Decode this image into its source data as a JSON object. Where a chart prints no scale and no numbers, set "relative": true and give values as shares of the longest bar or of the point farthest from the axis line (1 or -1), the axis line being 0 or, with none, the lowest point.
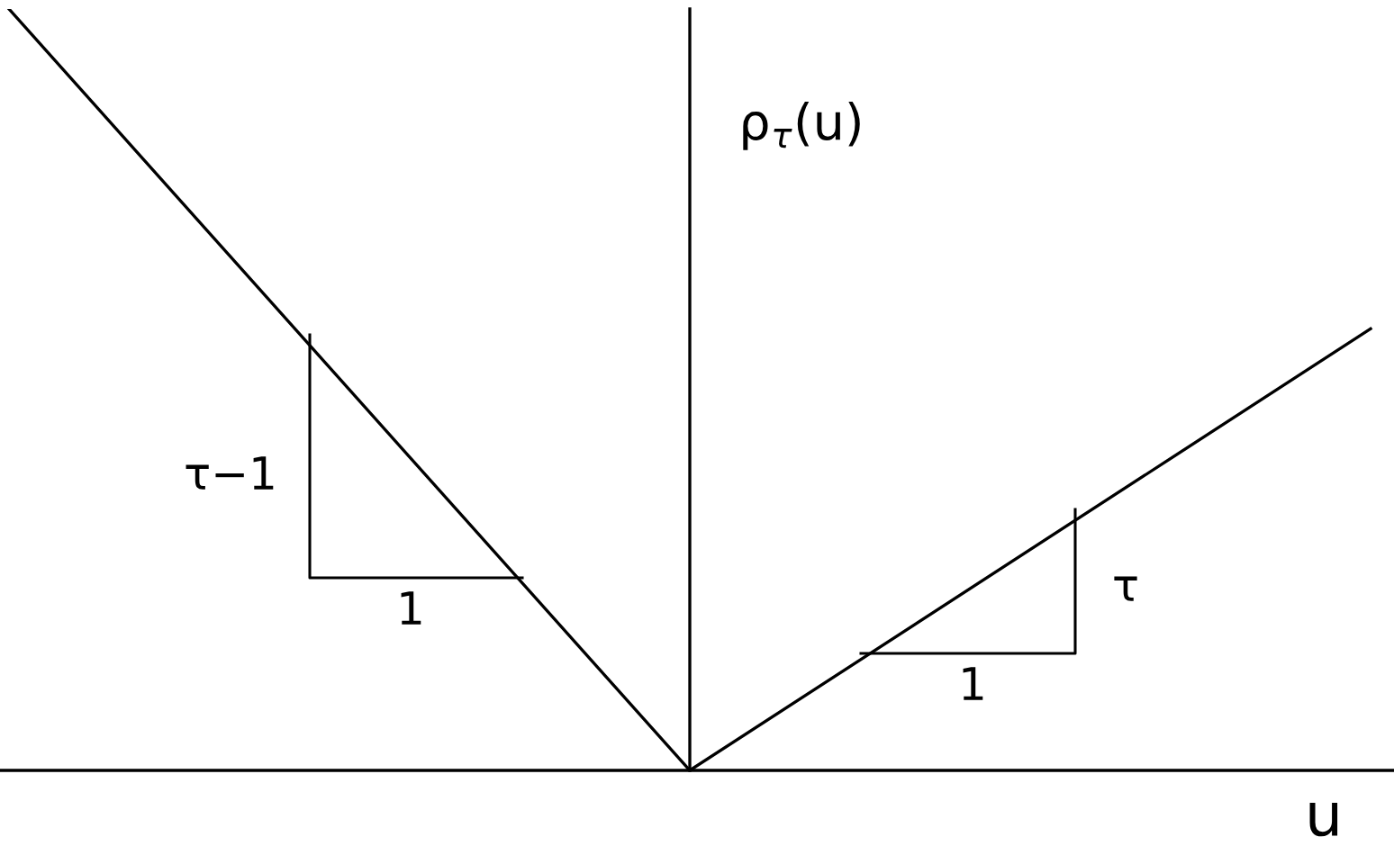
{
  "chart_data": {
    "type": "line",
    "relative": true,
    "categories": [
      null,
      null,
      null
    ],
    "series": [
      {
        "color": "#000000",
        "values": [
          1,
          0,
          0.58
        ]
      }
    ],
    "ylabel": "ρ$_{τ}$(u)",
    "xlabel": "u",
    "annotations": [
      "τ−1",
      "1",
      "τ",
      "1"
    ],
    "marker": "none",
    "line_style": "solid"
  }
}
